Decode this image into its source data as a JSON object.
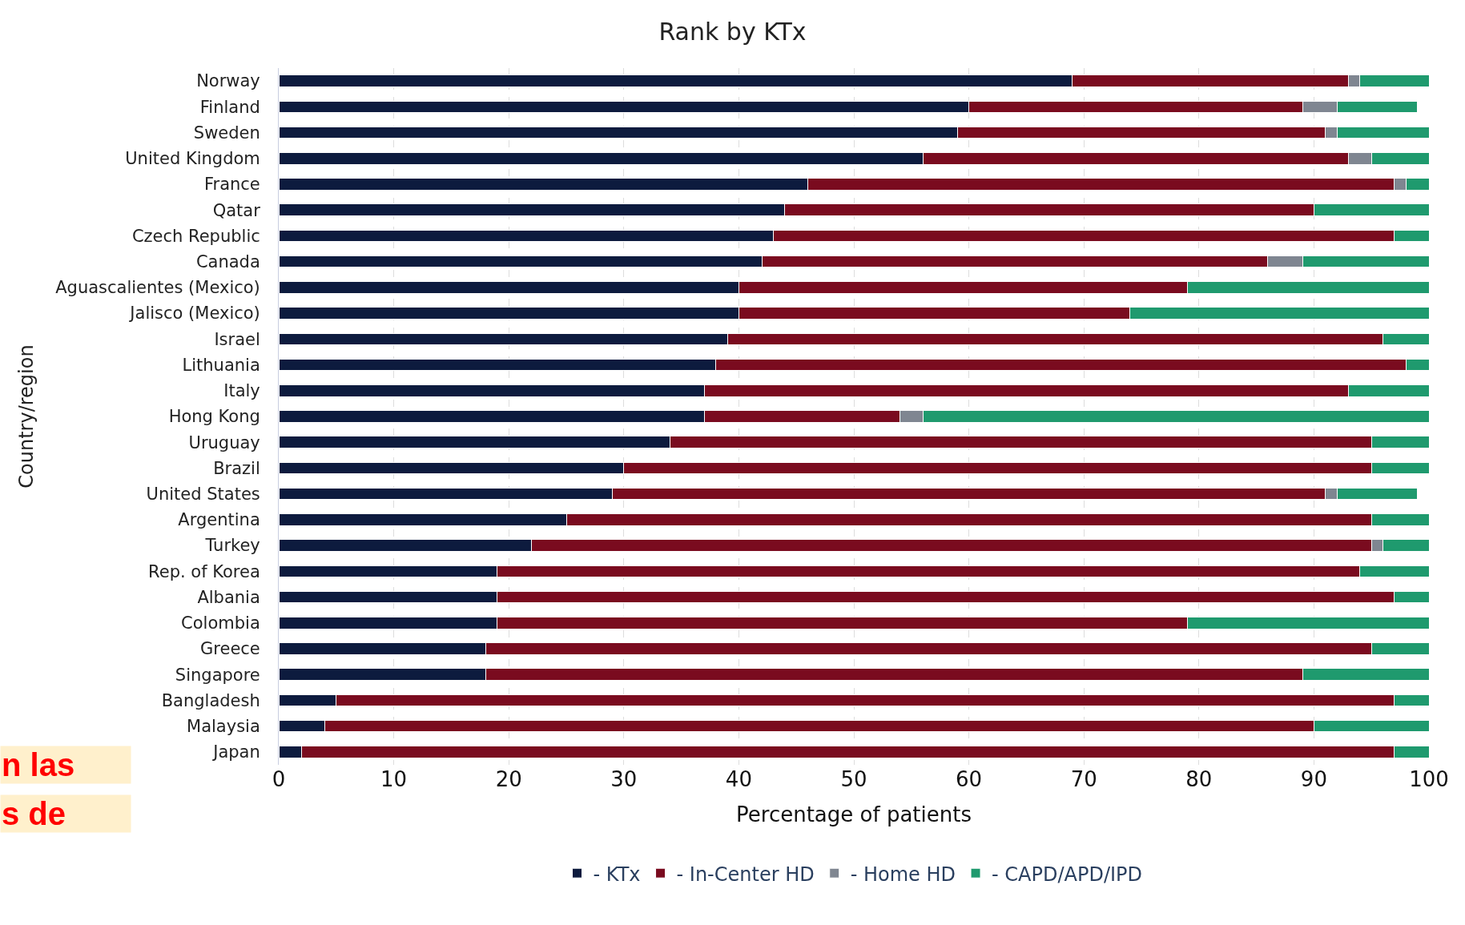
{
  "chart_data": {
    "type": "bar",
    "orientation": "horizontal",
    "stacked": true,
    "title": "Rank by KTx",
    "xlabel": "Percentage of patients",
    "ylabel": "Country/region",
    "categories": [
      "Norway",
      "Finland",
      "Sweden",
      "United Kingdom",
      "France",
      "Qatar",
      "Czech Republic",
      "Canada",
      "Aguascalientes (Mexico)",
      "Jalisco (Mexico)",
      "Israel",
      "Lithuania",
      "Italy",
      "Hong Kong",
      "Uruguay",
      "Brazil",
      "United States",
      "Argentina",
      "Turkey",
      "Rep. of Korea",
      "Albania",
      "Colombia",
      "Greece",
      "Singapore",
      "Bangladesh",
      "Malaysia",
      "Japan"
    ],
    "series": [
      {
        "name": "- KTx",
        "color": "#0d1b3e",
        "values": [
          69,
          60,
          59,
          56,
          46,
          44,
          43,
          42,
          40,
          40,
          39,
          38,
          37,
          37,
          34,
          30,
          29,
          25,
          22,
          19,
          19,
          19,
          18,
          18,
          5,
          4,
          2
        ]
      },
      {
        "name": "- In-Center HD",
        "color": "#7a0b1f",
        "values": [
          24,
          29,
          32,
          37,
          51,
          46,
          54,
          44,
          39,
          34,
          57,
          60,
          56,
          17,
          61,
          65,
          62,
          70,
          73,
          75,
          78,
          60,
          77,
          71,
          92,
          86,
          95
        ]
      },
      {
        "name": "- Home HD",
        "color": "#7f8691",
        "values": [
          1,
          3,
          1,
          2,
          1,
          0,
          0,
          3,
          0,
          0,
          0,
          0,
          0,
          2,
          0,
          0,
          1,
          0,
          1,
          0,
          0,
          0,
          0,
          0,
          0,
          0,
          0
        ]
      },
      {
        "name": "- CAPD/APD/IPD",
        "color": "#1f9a6e",
        "values": [
          6,
          7,
          8,
          5,
          2,
          10,
          3,
          11,
          21,
          26,
          4,
          2,
          7,
          44,
          5,
          5,
          7,
          5,
          4,
          6,
          3,
          21,
          5,
          11,
          3,
          10,
          3
        ]
      }
    ],
    "xlim": [
      0,
      100
    ],
    "xticks": [
      0,
      10,
      20,
      30,
      40,
      50,
      60,
      70,
      80,
      90,
      100
    ],
    "grid": "x",
    "legend": "bottom",
    "annotations": [
      "n las",
      "s de"
    ]
  }
}
